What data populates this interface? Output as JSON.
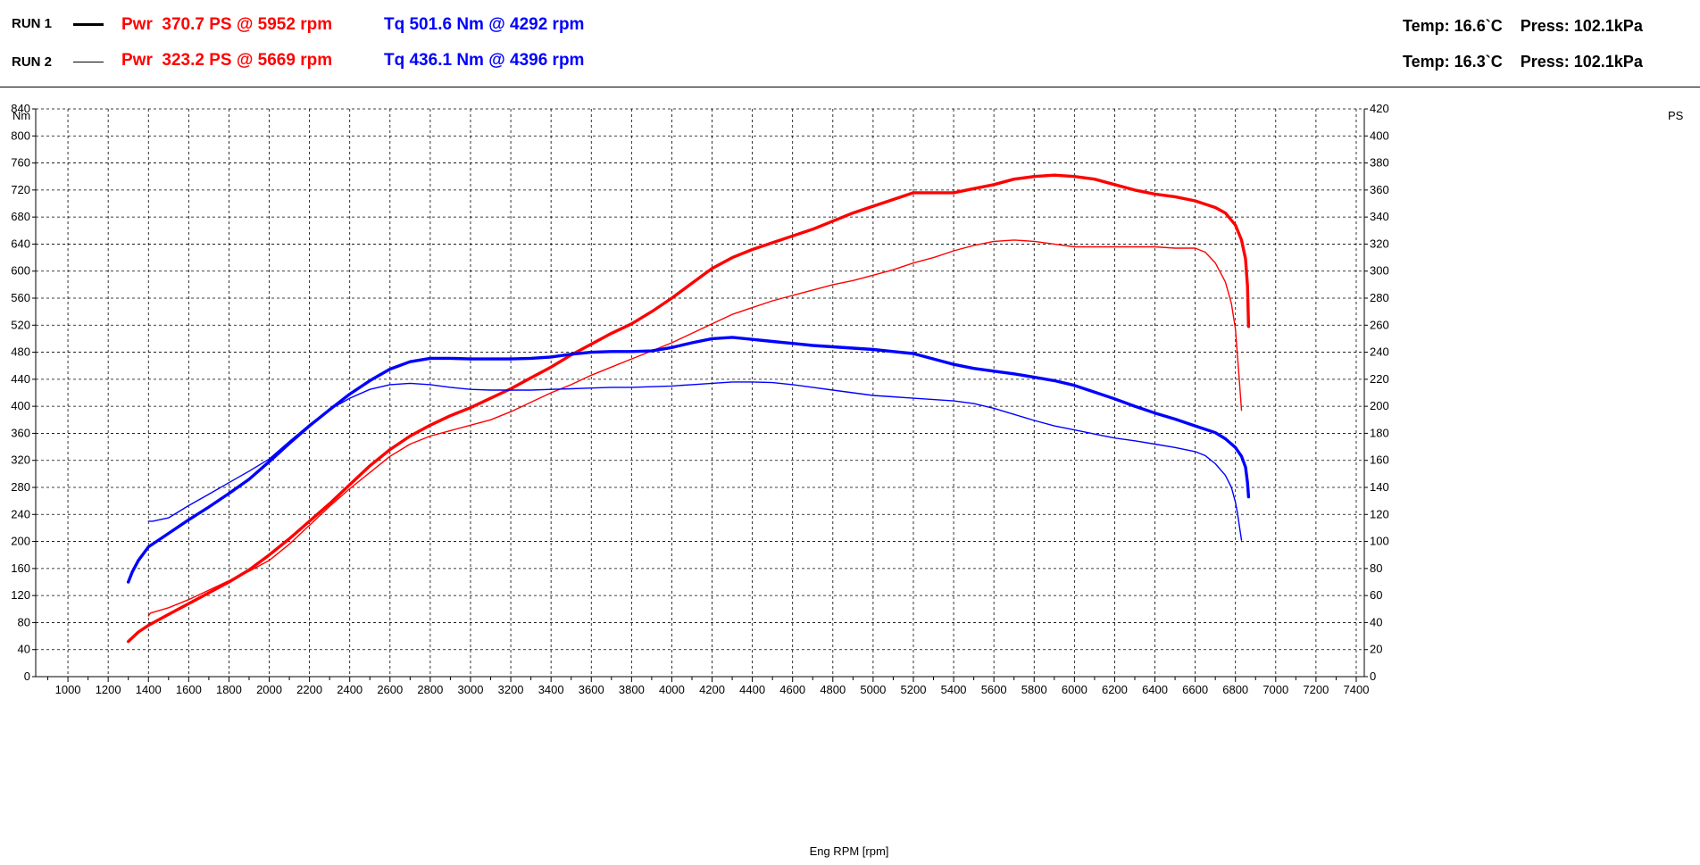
{
  "header": {
    "runs": [
      {
        "label": "RUN 1",
        "pwr_prefix": "Pwr",
        "pwr": "370.7 PS @ 5952 rpm",
        "tq": "Tq 501.6 Nm @ 4292 rpm",
        "temp": "Temp: 16.6`C",
        "press": "Press: 102.1kPa"
      },
      {
        "label": "RUN 2",
        "pwr_prefix": "Pwr",
        "pwr": "323.2 PS @ 5669 rpm",
        "tq": "Tq 436.1 Nm @ 4396 rpm",
        "temp": "Temp: 16.3`C",
        "press": "Press: 102.1kPa"
      }
    ]
  },
  "colors": {
    "power": "#ff0000",
    "torque": "#0000ff",
    "grid": "#000000",
    "text": "#000000"
  },
  "chart_data": {
    "type": "line",
    "xlabel": "Eng RPM [rpm]",
    "ylabel_left": "Nm",
    "ylabel_right": "PS",
    "xlim": [
      840,
      7440
    ],
    "ylim_left": [
      0,
      840
    ],
    "ylim_right": [
      0,
      420
    ],
    "xticks": [
      1000,
      1200,
      1400,
      1600,
      1800,
      2000,
      2200,
      2400,
      2600,
      2800,
      3000,
      3200,
      3400,
      3600,
      3800,
      4000,
      4200,
      4400,
      4600,
      4800,
      5000,
      5200,
      5400,
      5600,
      5800,
      6000,
      6200,
      6400,
      6600,
      6800,
      7000,
      7200,
      7400
    ],
    "yticks_left": [
      0,
      40,
      80,
      120,
      160,
      200,
      240,
      280,
      320,
      360,
      400,
      440,
      480,
      520,
      560,
      600,
      640,
      680,
      720,
      760,
      800,
      840
    ],
    "yticks_right": [
      0,
      20,
      40,
      60,
      80,
      100,
      120,
      140,
      160,
      180,
      200,
      220,
      240,
      260,
      280,
      300,
      320,
      340,
      360,
      380,
      400,
      420
    ],
    "grid": true,
    "series": [
      {
        "name": "RUN 1",
        "quantity": "Pwr",
        "unit": "PS",
        "axis": "right",
        "color": "#ff0000",
        "weight": "thick",
        "x": [
          1300,
          1350,
          1400,
          1500,
          1600,
          1700,
          1800,
          1900,
          2000,
          2100,
          2200,
          2300,
          2400,
          2500,
          2600,
          2700,
          2800,
          2900,
          3000,
          3100,
          3200,
          3300,
          3400,
          3500,
          3600,
          3700,
          3800,
          3900,
          4000,
          4100,
          4200,
          4300,
          4400,
          4500,
          4600,
          4700,
          4800,
          4900,
          5000,
          5100,
          5200,
          5300,
          5400,
          5500,
          5600,
          5700,
          5800,
          5900,
          6000,
          6100,
          6200,
          6300,
          6400,
          6500,
          6600,
          6700,
          6750,
          6800,
          6830,
          6850,
          6860,
          6865
        ],
        "y": [
          26,
          33,
          38,
          46,
          54,
          62,
          70,
          79,
          90,
          102,
          115,
          128,
          142,
          156,
          168,
          178,
          186,
          193,
          199,
          206,
          213,
          221,
          229,
          238,
          246,
          254,
          261,
          270,
          280,
          291,
          302,
          310,
          316,
          321,
          326,
          331,
          337,
          343,
          348,
          353,
          358,
          358,
          358,
          361,
          364,
          368,
          370,
          371,
          370,
          368,
          364,
          360,
          357,
          355,
          352,
          347,
          343,
          334,
          323,
          309,
          289,
          259
        ]
      },
      {
        "name": "RUN 2",
        "quantity": "Pwr",
        "unit": "PS",
        "axis": "right",
        "color": "#ff0000",
        "weight": "thin",
        "x": [
          1400,
          1410,
          1500,
          1600,
          1700,
          1800,
          1900,
          2000,
          2100,
          2200,
          2300,
          2400,
          2500,
          2600,
          2700,
          2800,
          2900,
          3000,
          3100,
          3200,
          3300,
          3400,
          3500,
          3600,
          3700,
          3800,
          3900,
          4000,
          4100,
          4200,
          4300,
          4400,
          4500,
          4600,
          4700,
          4800,
          4900,
          5000,
          5100,
          5200,
          5300,
          5400,
          5500,
          5600,
          5700,
          5800,
          5900,
          6000,
          6100,
          6200,
          6300,
          6400,
          6500,
          6600,
          6650,
          6700,
          6750,
          6780,
          6800,
          6810,
          6820,
          6830
        ],
        "y": [
          45,
          47,
          51,
          57,
          64,
          71,
          78,
          86,
          98,
          112,
          126,
          139,
          151,
          163,
          172,
          178,
          182,
          186,
          190,
          196,
          203,
          210,
          216,
          223,
          229,
          235,
          241,
          247,
          254,
          261,
          268,
          273,
          278,
          282,
          286,
          290,
          293,
          297,
          301,
          306,
          310,
          315,
          319,
          322,
          323,
          322,
          320,
          318,
          318,
          318,
          318,
          318,
          317,
          317,
          314,
          306,
          292,
          276,
          257,
          237,
          218,
          197
        ]
      },
      {
        "name": "RUN 1",
        "quantity": "Tq",
        "unit": "Nm",
        "axis": "left",
        "color": "#0000ff",
        "weight": "thick",
        "x": [
          1300,
          1320,
          1350,
          1400,
          1500,
          1600,
          1700,
          1800,
          1900,
          2000,
          2100,
          2200,
          2300,
          2400,
          2500,
          2600,
          2700,
          2800,
          2900,
          3000,
          3100,
          3200,
          3300,
          3400,
          3500,
          3600,
          3700,
          3800,
          3900,
          4000,
          4100,
          4200,
          4300,
          4400,
          4500,
          4600,
          4700,
          4800,
          4900,
          5000,
          5100,
          5200,
          5300,
          5400,
          5500,
          5600,
          5700,
          5800,
          5900,
          6000,
          6100,
          6200,
          6300,
          6400,
          6500,
          6600,
          6700,
          6750,
          6800,
          6830,
          6850,
          6860,
          6865
        ],
        "y": [
          140,
          155,
          172,
          192,
          212,
          232,
          251,
          271,
          292,
          318,
          345,
          371,
          395,
          418,
          438,
          455,
          466,
          471,
          471,
          470,
          470,
          470,
          471,
          473,
          477,
          480,
          481,
          481,
          482,
          487,
          494,
          500,
          502,
          499,
          496,
          493,
          490,
          488,
          486,
          484,
          481,
          478,
          470,
          462,
          456,
          452,
          448,
          443,
          438,
          431,
          421,
          411,
          400,
          390,
          381,
          371,
          361,
          352,
          339,
          326,
          310,
          287,
          266
        ]
      },
      {
        "name": "RUN 2",
        "quantity": "Tq",
        "unit": "Nm",
        "axis": "left",
        "color": "#0000ff",
        "weight": "thin",
        "x": [
          1400,
          1420,
          1500,
          1600,
          1700,
          1800,
          1900,
          2000,
          2100,
          2200,
          2300,
          2400,
          2500,
          2600,
          2700,
          2800,
          2900,
          3000,
          3100,
          3200,
          3300,
          3400,
          3500,
          3600,
          3700,
          3800,
          3900,
          4000,
          4100,
          4200,
          4300,
          4400,
          4500,
          4600,
          4700,
          4800,
          4900,
          5000,
          5100,
          5200,
          5300,
          5400,
          5500,
          5600,
          5700,
          5800,
          5900,
          6000,
          6100,
          6200,
          6300,
          6400,
          6500,
          6600,
          6650,
          6700,
          6750,
          6780,
          6800,
          6810,
          6820,
          6830
        ],
        "y": [
          230,
          230,
          235,
          253,
          270,
          287,
          304,
          322,
          348,
          373,
          395,
          412,
          425,
          432,
          434,
          432,
          428,
          425,
          424,
          424,
          424,
          425,
          426,
          427,
          428,
          428,
          429,
          430,
          432,
          434,
          436,
          436,
          435,
          432,
          428,
          424,
          420,
          416,
          414,
          412,
          410,
          408,
          404,
          397,
          388,
          379,
          371,
          365,
          359,
          353,
          349,
          344,
          339,
          333,
          327,
          315,
          298,
          280,
          258,
          242,
          222,
          202
        ]
      }
    ]
  }
}
